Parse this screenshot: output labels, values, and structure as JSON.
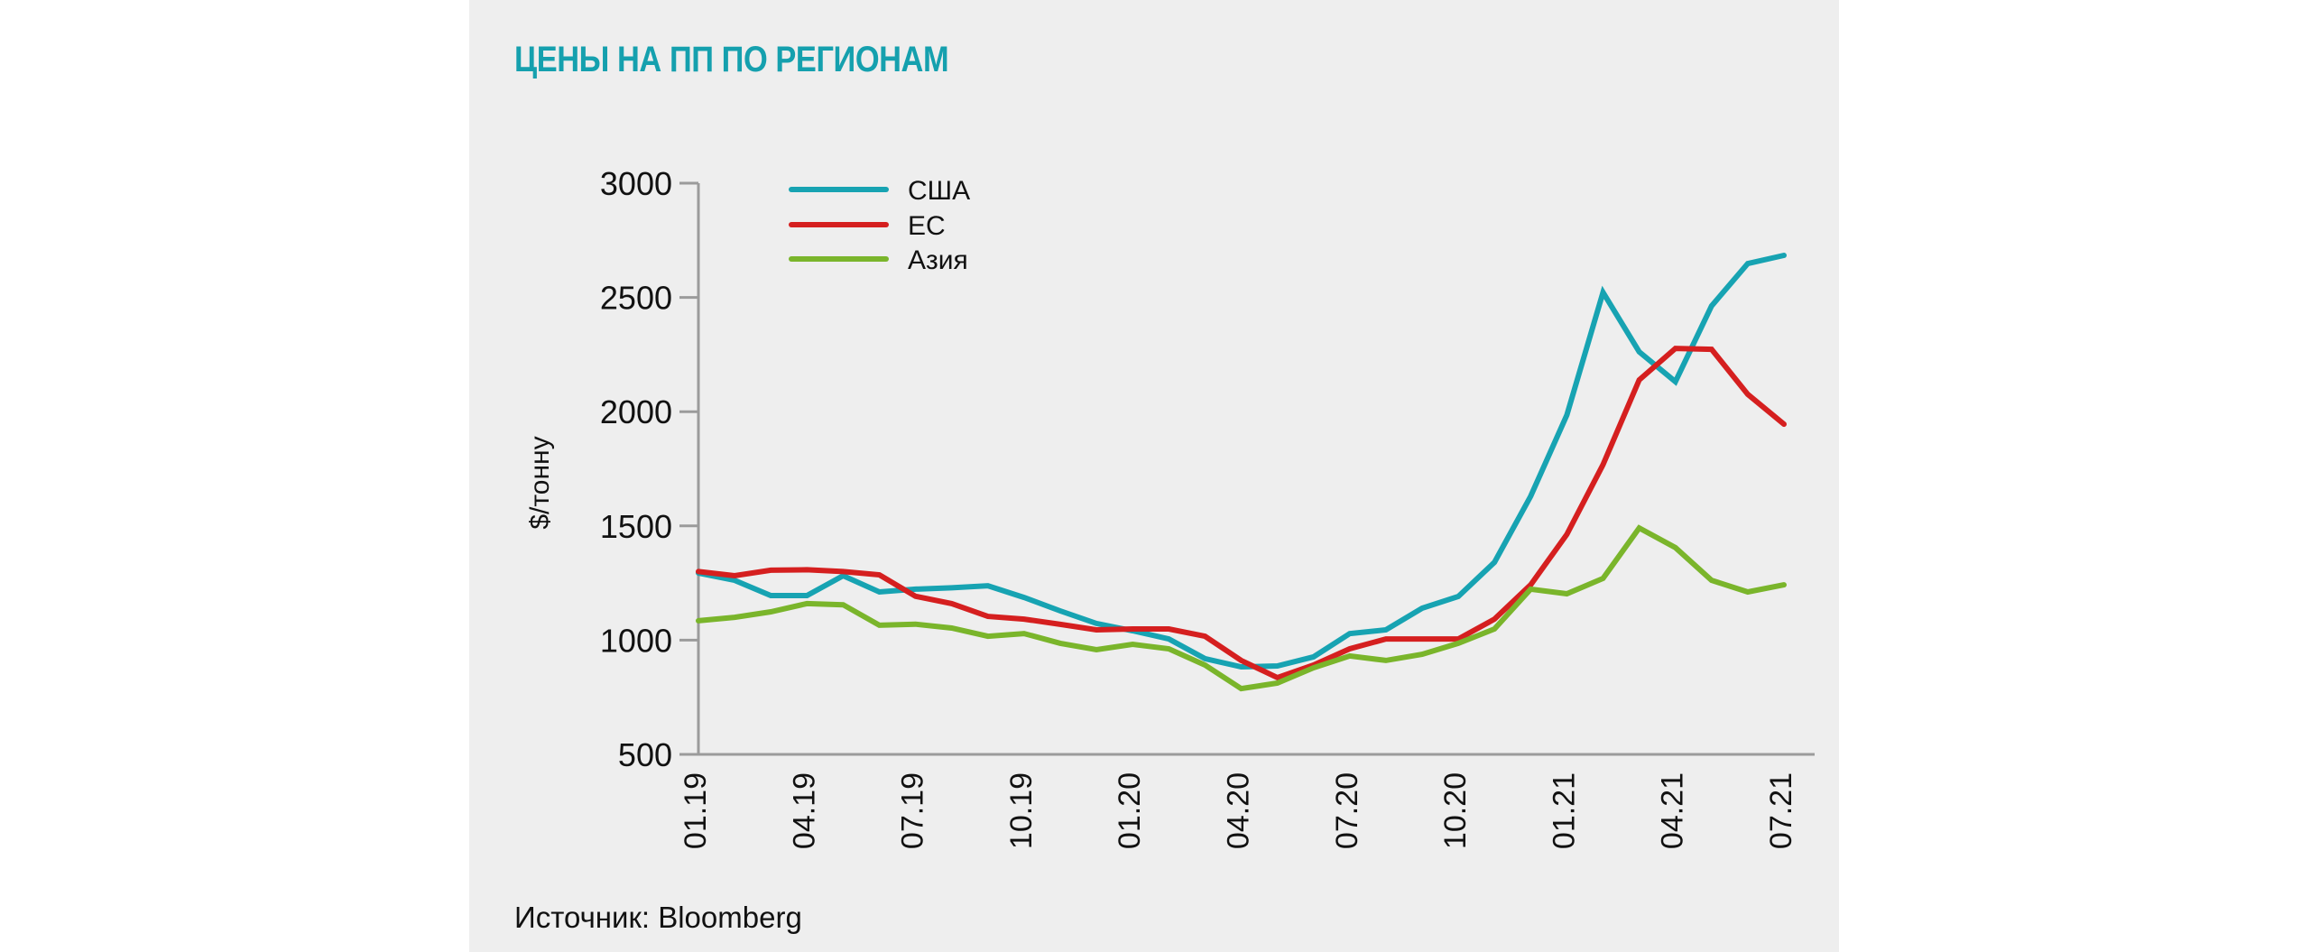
{
  "header": {
    "title": "ЦЕНЫ НА ПП ПО РЕГИОНАМ"
  },
  "footer": {
    "source": "Источник: Bloomberg"
  },
  "colors": {
    "title": "#15a0ae",
    "background": "#eeeeee",
    "axis": "#9b9b9b"
  },
  "chart_data": {
    "type": "line",
    "title": "ЦЕНЫ НА ПП ПО РЕГИОНАМ",
    "xlabel": "",
    "ylabel": "$/тонну",
    "ylim": [
      500,
      3000
    ],
    "yticks": [
      500,
      1000,
      1500,
      2000,
      2500,
      3000
    ],
    "x": [
      "01.19",
      "02.19",
      "03.19",
      "04.19",
      "05.19",
      "06.19",
      "07.19",
      "08.19",
      "09.19",
      "10.19",
      "11.19",
      "12.19",
      "01.20",
      "02.20",
      "03.20",
      "04.20",
      "05.20",
      "06.20",
      "07.20",
      "08.20",
      "09.20",
      "10.20",
      "11.20",
      "12.20",
      "01.21",
      "02.21",
      "03.21",
      "04.21",
      "05.21",
      "06.21",
      "07.21"
    ],
    "xtick_labels": [
      "01.19",
      "04.19",
      "07.19",
      "10.19",
      "01.20",
      "04.20",
      "07.20",
      "10.20",
      "01.21",
      "04.21",
      "07.21"
    ],
    "grid": false,
    "legend_position": "top-left",
    "series": [
      {
        "name": "США",
        "color": "#17a3b2",
        "values": [
          1294,
          1262,
          1195,
          1195,
          1282,
          1211,
          1223,
          1229,
          1238,
          1187,
          1128,
          1073,
          1041,
          1005,
          919,
          883,
          887,
          927,
          1029,
          1045,
          1140,
          1191,
          1341,
          1630,
          1985,
          2522,
          2262,
          2131,
          2463,
          2648,
          2684
        ]
      },
      {
        "name": "ЕС",
        "color": "#d51f1f",
        "values": [
          1300,
          1282,
          1306,
          1308,
          1300,
          1286,
          1192,
          1160,
          1104,
          1092,
          1069,
          1045,
          1049,
          1049,
          1017,
          911,
          836,
          891,
          962,
          1005,
          1005,
          1005,
          1092,
          1242,
          1463,
          1768,
          2139,
          2277,
          2273,
          2076,
          1945
        ]
      },
      {
        "name": "Азия",
        "color": "#7ab52b",
        "values": [
          1085,
          1100,
          1124,
          1160,
          1155,
          1065,
          1070,
          1053,
          1017,
          1029,
          986,
          958,
          982,
          962,
          891,
          788,
          812,
          879,
          931,
          911,
          938,
          986,
          1049,
          1223,
          1203,
          1270,
          1491,
          1405,
          1262,
          1211,
          1242
        ]
      }
    ]
  }
}
